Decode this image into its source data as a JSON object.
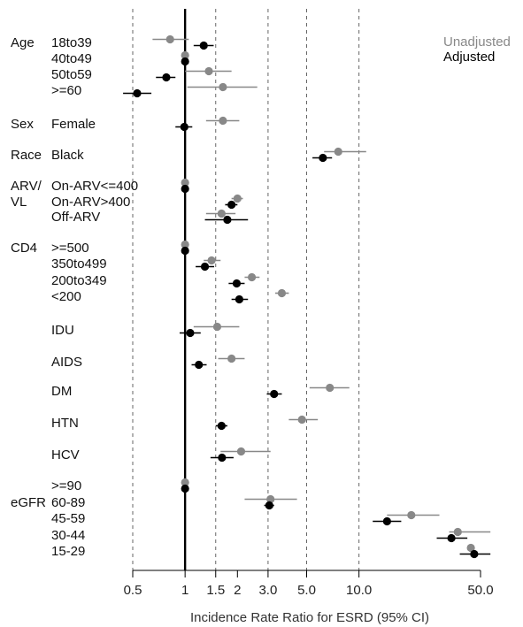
{
  "chart_data": {
    "type": "forest",
    "xlabel": "Incidence Rate Ratio for ESRD (95% CI)",
    "xscale": "log",
    "xlim": [
      0.5,
      50.0
    ],
    "reference_line": 1,
    "dashed_gridlines": [
      0.5,
      1.5,
      3.0,
      5.0,
      10.0
    ],
    "xticks": [
      {
        "value": 0.5,
        "label": "0.5"
      },
      {
        "value": 1,
        "label": "1"
      },
      {
        "value": 1.5,
        "label": "1.5"
      },
      {
        "value": 2,
        "label": "2"
      },
      {
        "value": 3,
        "label": "3.0"
      },
      {
        "value": 5,
        "label": "5.0"
      },
      {
        "value": 10,
        "label": "10.0"
      },
      {
        "value": 50,
        "label": "50.0"
      }
    ],
    "legend": {
      "position": "top-right",
      "items": [
        {
          "label": "Unadjusted",
          "color": "#888888"
        },
        {
          "label": "Adjusted",
          "color": "#000000"
        }
      ]
    },
    "group_labels": [
      {
        "label": "Age",
        "row": 0
      },
      {
        "label": "Sex",
        "row": 4
      },
      {
        "label": "Race",
        "row": 5
      },
      {
        "label": "ARV/",
        "row": 6
      },
      {
        "label": "VL",
        "row": 7
      },
      {
        "label": "CD4",
        "row": 9
      },
      {
        "label": "eGFR",
        "row": 19
      }
    ],
    "rows": [
      {
        "label": "18to39",
        "unadjusted": {
          "est": 0.82,
          "lo": 0.65,
          "hi": 1.05
        },
        "adjusted": {
          "est": 1.28,
          "lo": 1.12,
          "hi": 1.46
        }
      },
      {
        "label": "40to49",
        "unadjusted": {
          "est": 1.0,
          "lo": 1.0,
          "hi": 1.0
        },
        "adjusted": {
          "est": 1.0,
          "lo": 1.0,
          "hi": 1.0
        }
      },
      {
        "label": "50to59",
        "unadjusted": {
          "est": 1.37,
          "lo": 1.0,
          "hi": 1.85
        },
        "adjusted": {
          "est": 0.78,
          "lo": 0.68,
          "hi": 0.88
        }
      },
      {
        "label": ">=60",
        "unadjusted": {
          "est": 1.65,
          "lo": 1.03,
          "hi": 2.6
        },
        "adjusted": {
          "est": 0.53,
          "lo": 0.44,
          "hi": 0.64
        }
      },
      {
        "label": "Female",
        "unadjusted": {
          "est": 1.65,
          "lo": 1.32,
          "hi": 2.05
        },
        "adjusted": {
          "est": 0.99,
          "lo": 0.88,
          "hi": 1.1
        }
      },
      {
        "label": "Black",
        "unadjusted": {
          "est": 7.6,
          "lo": 6.3,
          "hi": 11.0
        },
        "adjusted": {
          "est": 6.2,
          "lo": 5.4,
          "hi": 7.0
        }
      },
      {
        "label": "On-ARV<=400",
        "unadjusted": {
          "est": 1.0,
          "lo": 1.0,
          "hi": 1.0
        },
        "adjusted": {
          "est": 1.0,
          "lo": 1.0,
          "hi": 1.0
        }
      },
      {
        "label": "On-ARV>400",
        "unadjusted": {
          "est": 2.0,
          "lo": 1.85,
          "hi": 2.15
        },
        "adjusted": {
          "est": 1.85,
          "lo": 1.7,
          "hi": 2.0
        }
      },
      {
        "label": "Off-ARV",
        "unadjusted": {
          "est": 1.62,
          "lo": 1.32,
          "hi": 1.95
        },
        "adjusted": {
          "est": 1.75,
          "lo": 1.3,
          "hi": 2.3
        }
      },
      {
        "label": ">=500",
        "unadjusted": {
          "est": 1.0,
          "lo": 1.0,
          "hi": 1.0
        },
        "adjusted": {
          "est": 1.0,
          "lo": 1.0,
          "hi": 1.0
        }
      },
      {
        "label": "350to499",
        "unadjusted": {
          "est": 1.42,
          "lo": 1.28,
          "hi": 1.6
        },
        "adjusted": {
          "est": 1.3,
          "lo": 1.15,
          "hi": 1.47
        }
      },
      {
        "label": "200to349",
        "unadjusted": {
          "est": 2.42,
          "lo": 2.2,
          "hi": 2.68
        },
        "adjusted": {
          "est": 1.98,
          "lo": 1.78,
          "hi": 2.2
        }
      },
      {
        "label": "<200",
        "unadjusted": {
          "est": 3.6,
          "lo": 3.3,
          "hi": 3.95
        },
        "adjusted": {
          "est": 2.05,
          "lo": 1.85,
          "hi": 2.3
        }
      },
      {
        "label": "IDU",
        "unadjusted": {
          "est": 1.53,
          "lo": 1.12,
          "hi": 2.05
        },
        "adjusted": {
          "est": 1.07,
          "lo": 0.93,
          "hi": 1.23
        }
      },
      {
        "label": "AIDS",
        "unadjusted": {
          "est": 1.85,
          "lo": 1.55,
          "hi": 2.2
        },
        "adjusted": {
          "est": 1.2,
          "lo": 1.09,
          "hi": 1.33
        }
      },
      {
        "label": "DM",
        "unadjusted": {
          "est": 6.8,
          "lo": 5.2,
          "hi": 8.8
        },
        "adjusted": {
          "est": 3.25,
          "lo": 2.95,
          "hi": 3.6
        }
      },
      {
        "label": "HTN",
        "unadjusted": {
          "est": 4.7,
          "lo": 3.95,
          "hi": 5.8
        },
        "adjusted": {
          "est": 1.62,
          "lo": 1.5,
          "hi": 1.75
        }
      },
      {
        "label": "HCV",
        "unadjusted": {
          "est": 2.1,
          "lo": 1.6,
          "hi": 3.1
        },
        "adjusted": {
          "est": 1.63,
          "lo": 1.4,
          "hi": 1.9
        }
      },
      {
        "label": ">=90",
        "unadjusted": {
          "est": 1.0,
          "lo": 1.0,
          "hi": 1.0
        },
        "adjusted": {
          "est": 1.0,
          "lo": 1.0,
          "hi": 1.0
        }
      },
      {
        "label": "60-89",
        "unadjusted": {
          "est": 3.1,
          "lo": 2.2,
          "hi": 4.4
        },
        "adjusted": {
          "est": 3.05,
          "lo": 2.85,
          "hi": 3.25
        }
      },
      {
        "label": "45-59",
        "unadjusted": {
          "est": 20.0,
          "lo": 14.5,
          "hi": 29.0
        },
        "adjusted": {
          "est": 14.5,
          "lo": 12.0,
          "hi": 17.5
        }
      },
      {
        "label": "30-44",
        "unadjusted": {
          "est": 37.0,
          "lo": 33.0,
          "hi": 57.0
        },
        "adjusted": {
          "est": 34.0,
          "lo": 28.0,
          "hi": 42.0
        }
      },
      {
        "label": "15-29",
        "unadjusted": {
          "est": 44.0,
          "lo": 42.0,
          "hi": 46.0
        },
        "adjusted": {
          "est": 46.0,
          "lo": 38.0,
          "hi": 57.0
        }
      }
    ]
  }
}
